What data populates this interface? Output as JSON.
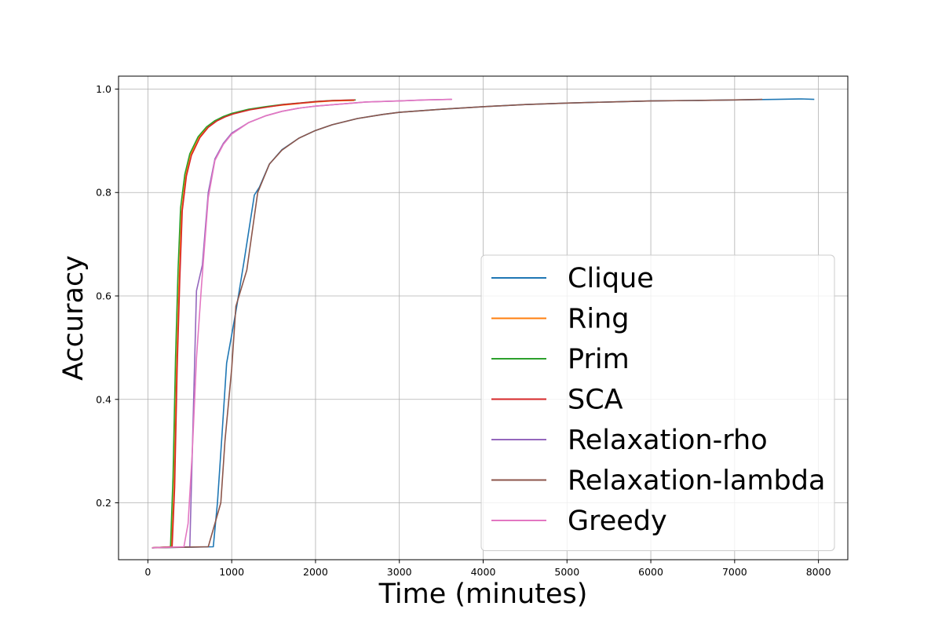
{
  "chart_data": {
    "type": "line",
    "title": "",
    "xlabel": "Time (minutes)",
    "ylabel": "Accuracy",
    "xlim": [
      -350,
      8350
    ],
    "ylim": [
      0.09,
      1.025
    ],
    "x_ticks": [
      0,
      1000,
      2000,
      3000,
      4000,
      5000,
      6000,
      7000,
      8000
    ],
    "x_tick_labels": [
      "0",
      "1000",
      "2000",
      "3000",
      "4000",
      "5000",
      "6000",
      "7000",
      "8000"
    ],
    "y_ticks": [
      0.2,
      0.4,
      0.6,
      0.8,
      1.0
    ],
    "y_tick_labels": [
      "0.2",
      "0.4",
      "0.6",
      "0.8",
      "1.0"
    ],
    "grid": true,
    "legend_position": "lower-right",
    "series": [
      {
        "name": "Clique",
        "color": "#1f77b4",
        "points": [
          [
            50,
            0.113
          ],
          [
            780,
            0.115
          ],
          [
            830,
            0.2
          ],
          [
            880,
            0.32
          ],
          [
            940,
            0.47
          ],
          [
            1050,
            0.57
          ],
          [
            1150,
            0.67
          ],
          [
            1270,
            0.795
          ],
          [
            1330,
            0.81
          ],
          [
            1450,
            0.855
          ],
          [
            1600,
            0.883
          ],
          [
            1800,
            0.905
          ],
          [
            2000,
            0.92
          ],
          [
            2200,
            0.931
          ],
          [
            2500,
            0.943
          ],
          [
            2800,
            0.951
          ],
          [
            3000,
            0.955
          ],
          [
            3500,
            0.961
          ],
          [
            4000,
            0.966
          ],
          [
            4500,
            0.97
          ],
          [
            5000,
            0.973
          ],
          [
            5500,
            0.975
          ],
          [
            6000,
            0.977
          ],
          [
            6500,
            0.978
          ],
          [
            7000,
            0.979
          ],
          [
            7500,
            0.98
          ],
          [
            7800,
            0.981
          ],
          [
            7950,
            0.98
          ]
        ]
      },
      {
        "name": "Ring",
        "color": "#ff7f0e",
        "points": [
          [
            50,
            0.113
          ],
          [
            280,
            0.115
          ],
          [
            310,
            0.22
          ],
          [
            340,
            0.45
          ],
          [
            370,
            0.62
          ],
          [
            400,
            0.76
          ],
          [
            450,
            0.83
          ],
          [
            500,
            0.87
          ],
          [
            600,
            0.905
          ],
          [
            700,
            0.925
          ],
          [
            800,
            0.937
          ],
          [
            900,
            0.945
          ],
          [
            1000,
            0.952
          ],
          [
            1200,
            0.96
          ],
          [
            1400,
            0.965
          ],
          [
            1600,
            0.969
          ],
          [
            1800,
            0.972
          ],
          [
            2000,
            0.975
          ],
          [
            2200,
            0.977
          ],
          [
            2460,
            0.978
          ]
        ]
      },
      {
        "name": "Prim",
        "color": "#2ca02c",
        "points": [
          [
            50,
            0.113
          ],
          [
            270,
            0.115
          ],
          [
            300,
            0.25
          ],
          [
            330,
            0.48
          ],
          [
            360,
            0.65
          ],
          [
            390,
            0.77
          ],
          [
            440,
            0.835
          ],
          [
            500,
            0.875
          ],
          [
            600,
            0.908
          ],
          [
            700,
            0.927
          ],
          [
            800,
            0.939
          ],
          [
            900,
            0.947
          ],
          [
            1000,
            0.953
          ],
          [
            1200,
            0.961
          ],
          [
            1400,
            0.966
          ],
          [
            1600,
            0.97
          ],
          [
            1800,
            0.973
          ],
          [
            2000,
            0.976
          ],
          [
            2200,
            0.978
          ],
          [
            2480,
            0.979
          ]
        ]
      },
      {
        "name": "SCA",
        "color": "#d62728",
        "points": [
          [
            50,
            0.113
          ],
          [
            290,
            0.115
          ],
          [
            320,
            0.23
          ],
          [
            350,
            0.46
          ],
          [
            380,
            0.63
          ],
          [
            410,
            0.765
          ],
          [
            460,
            0.832
          ],
          [
            520,
            0.872
          ],
          [
            620,
            0.906
          ],
          [
            720,
            0.926
          ],
          [
            820,
            0.938
          ],
          [
            920,
            0.946
          ],
          [
            1020,
            0.952
          ],
          [
            1220,
            0.96
          ],
          [
            1420,
            0.965
          ],
          [
            1620,
            0.97
          ],
          [
            1820,
            0.973
          ],
          [
            2020,
            0.976
          ],
          [
            2220,
            0.978
          ],
          [
            2470,
            0.979
          ]
        ]
      },
      {
        "name": "Relaxation-rho",
        "color": "#9467bd",
        "points": [
          [
            50,
            0.113
          ],
          [
            500,
            0.115
          ],
          [
            530,
            0.3
          ],
          [
            580,
            0.61
          ],
          [
            650,
            0.66
          ],
          [
            720,
            0.8
          ],
          [
            800,
            0.865
          ],
          [
            900,
            0.895
          ],
          [
            1000,
            0.915
          ],
          [
            1200,
            0.935
          ],
          [
            1400,
            0.948
          ],
          [
            1600,
            0.957
          ],
          [
            1800,
            0.963
          ],
          [
            2000,
            0.967
          ],
          [
            2300,
            0.971
          ],
          [
            2600,
            0.975
          ],
          [
            3000,
            0.977
          ],
          [
            3300,
            0.979
          ],
          [
            3620,
            0.98
          ]
        ]
      },
      {
        "name": "Relaxation-lambda",
        "color": "#8c564b",
        "points": [
          [
            50,
            0.113
          ],
          [
            720,
            0.115
          ],
          [
            800,
            0.16
          ],
          [
            870,
            0.2
          ],
          [
            920,
            0.32
          ],
          [
            1000,
            0.46
          ],
          [
            1050,
            0.58
          ],
          [
            1180,
            0.65
          ],
          [
            1310,
            0.8
          ],
          [
            1450,
            0.855
          ],
          [
            1600,
            0.882
          ],
          [
            1800,
            0.905
          ],
          [
            2000,
            0.92
          ],
          [
            2200,
            0.931
          ],
          [
            2500,
            0.943
          ],
          [
            2800,
            0.951
          ],
          [
            3000,
            0.955
          ],
          [
            3500,
            0.961
          ],
          [
            4000,
            0.966
          ],
          [
            4500,
            0.97
          ],
          [
            5000,
            0.973
          ],
          [
            5500,
            0.975
          ],
          [
            6000,
            0.977
          ],
          [
            6500,
            0.978
          ],
          [
            7000,
            0.979
          ],
          [
            7330,
            0.98
          ]
        ]
      },
      {
        "name": "Greedy",
        "color": "#e377c2",
        "points": [
          [
            50,
            0.113
          ],
          [
            430,
            0.115
          ],
          [
            480,
            0.16
          ],
          [
            530,
            0.3
          ],
          [
            580,
            0.48
          ],
          [
            640,
            0.62
          ],
          [
            720,
            0.79
          ],
          [
            800,
            0.862
          ],
          [
            900,
            0.893
          ],
          [
            1000,
            0.913
          ],
          [
            1200,
            0.935
          ],
          [
            1400,
            0.948
          ],
          [
            1600,
            0.957
          ],
          [
            1800,
            0.963
          ],
          [
            2000,
            0.967
          ],
          [
            2300,
            0.971
          ],
          [
            2600,
            0.975
          ],
          [
            3000,
            0.977
          ],
          [
            3300,
            0.979
          ],
          [
            3630,
            0.98
          ]
        ]
      }
    ]
  }
}
